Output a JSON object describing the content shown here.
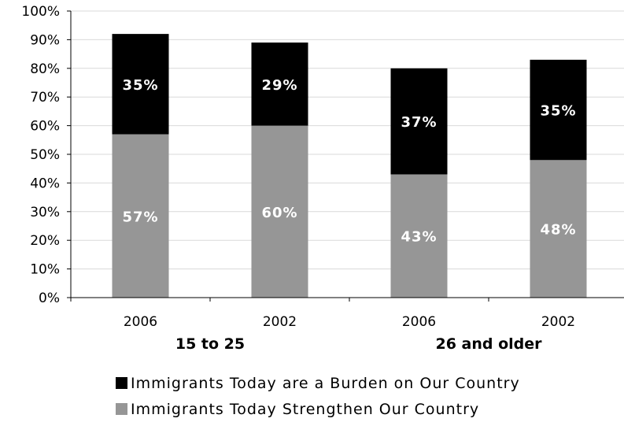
{
  "chart_data": {
    "type": "bar",
    "stacked": true,
    "categories": [
      "2006",
      "2002",
      "2006",
      "2002"
    ],
    "groups": [
      {
        "label": "15 to 25",
        "categories": [
          0,
          1
        ]
      },
      {
        "label": "26 and older",
        "categories": [
          2,
          3
        ]
      }
    ],
    "series": [
      {
        "name": "Immigrants Today Strengthen Our Country",
        "values": [
          57,
          60,
          43,
          48
        ],
        "labels": [
          "57%",
          "60%",
          "43%",
          "48%"
        ],
        "color": "#969696"
      },
      {
        "name": "Immigrants Today are a Burden on Our Country",
        "values": [
          35,
          29,
          37,
          35
        ],
        "labels": [
          "35%",
          "29%",
          "37%",
          "35%"
        ],
        "color": "#000000"
      }
    ],
    "ylim": [
      0,
      100
    ],
    "yticks": [
      "0%",
      "10%",
      "20%",
      "30%",
      "40%",
      "50%",
      "60%",
      "70%",
      "80%",
      "90%",
      "100%"
    ],
    "grid": true,
    "legend_position": "bottom",
    "legend_order": [
      "Immigrants Today are a Burden on Our Country",
      "Immigrants Today Strengthen Our Country"
    ]
  }
}
